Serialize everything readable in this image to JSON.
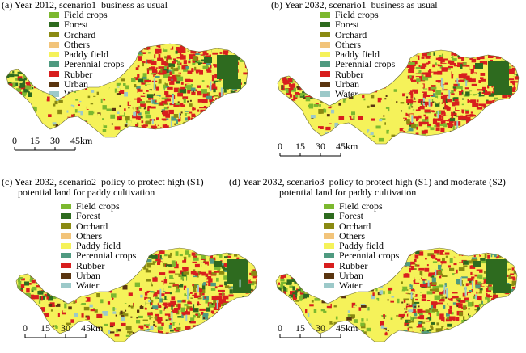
{
  "panels": [
    {
      "caption_line1": "(a) Year 2012, scenario1–business as usual",
      "caption_line2": ""
    },
    {
      "caption_line1": "(b) Year 2032, scenario1–business as usual",
      "caption_line2": ""
    },
    {
      "caption_line1": "(c) Year 2032, scenario2–policy to protect high (S1)",
      "caption_line2": "potential land for paddy cultivation"
    },
    {
      "caption_line1": "(d) Year 2032, scenario3–policy to protect high (S1) and moderate (S2)",
      "caption_line2": "potential land for paddy cultivation"
    }
  ],
  "legend": [
    {
      "label": "Field crops",
      "color": "#7cb82f"
    },
    {
      "label": "Forest",
      "color": "#2e6b1f"
    },
    {
      "label": "Orchard",
      "color": "#8a8a12"
    },
    {
      "label": "Others",
      "color": "#f2c47a"
    },
    {
      "label": "Paddy field",
      "color": "#f5f25a"
    },
    {
      "label": "Perennial crops",
      "color": "#4f9a80"
    },
    {
      "label": "Rubber",
      "color": "#d81e1e"
    },
    {
      "label": "Urban",
      "color": "#5a3510"
    },
    {
      "label": "Water",
      "color": "#9cc9c9"
    }
  ],
  "scalebar": {
    "ticks": [
      "0",
      "15",
      "30",
      "45"
    ],
    "unit": "km"
  }
}
